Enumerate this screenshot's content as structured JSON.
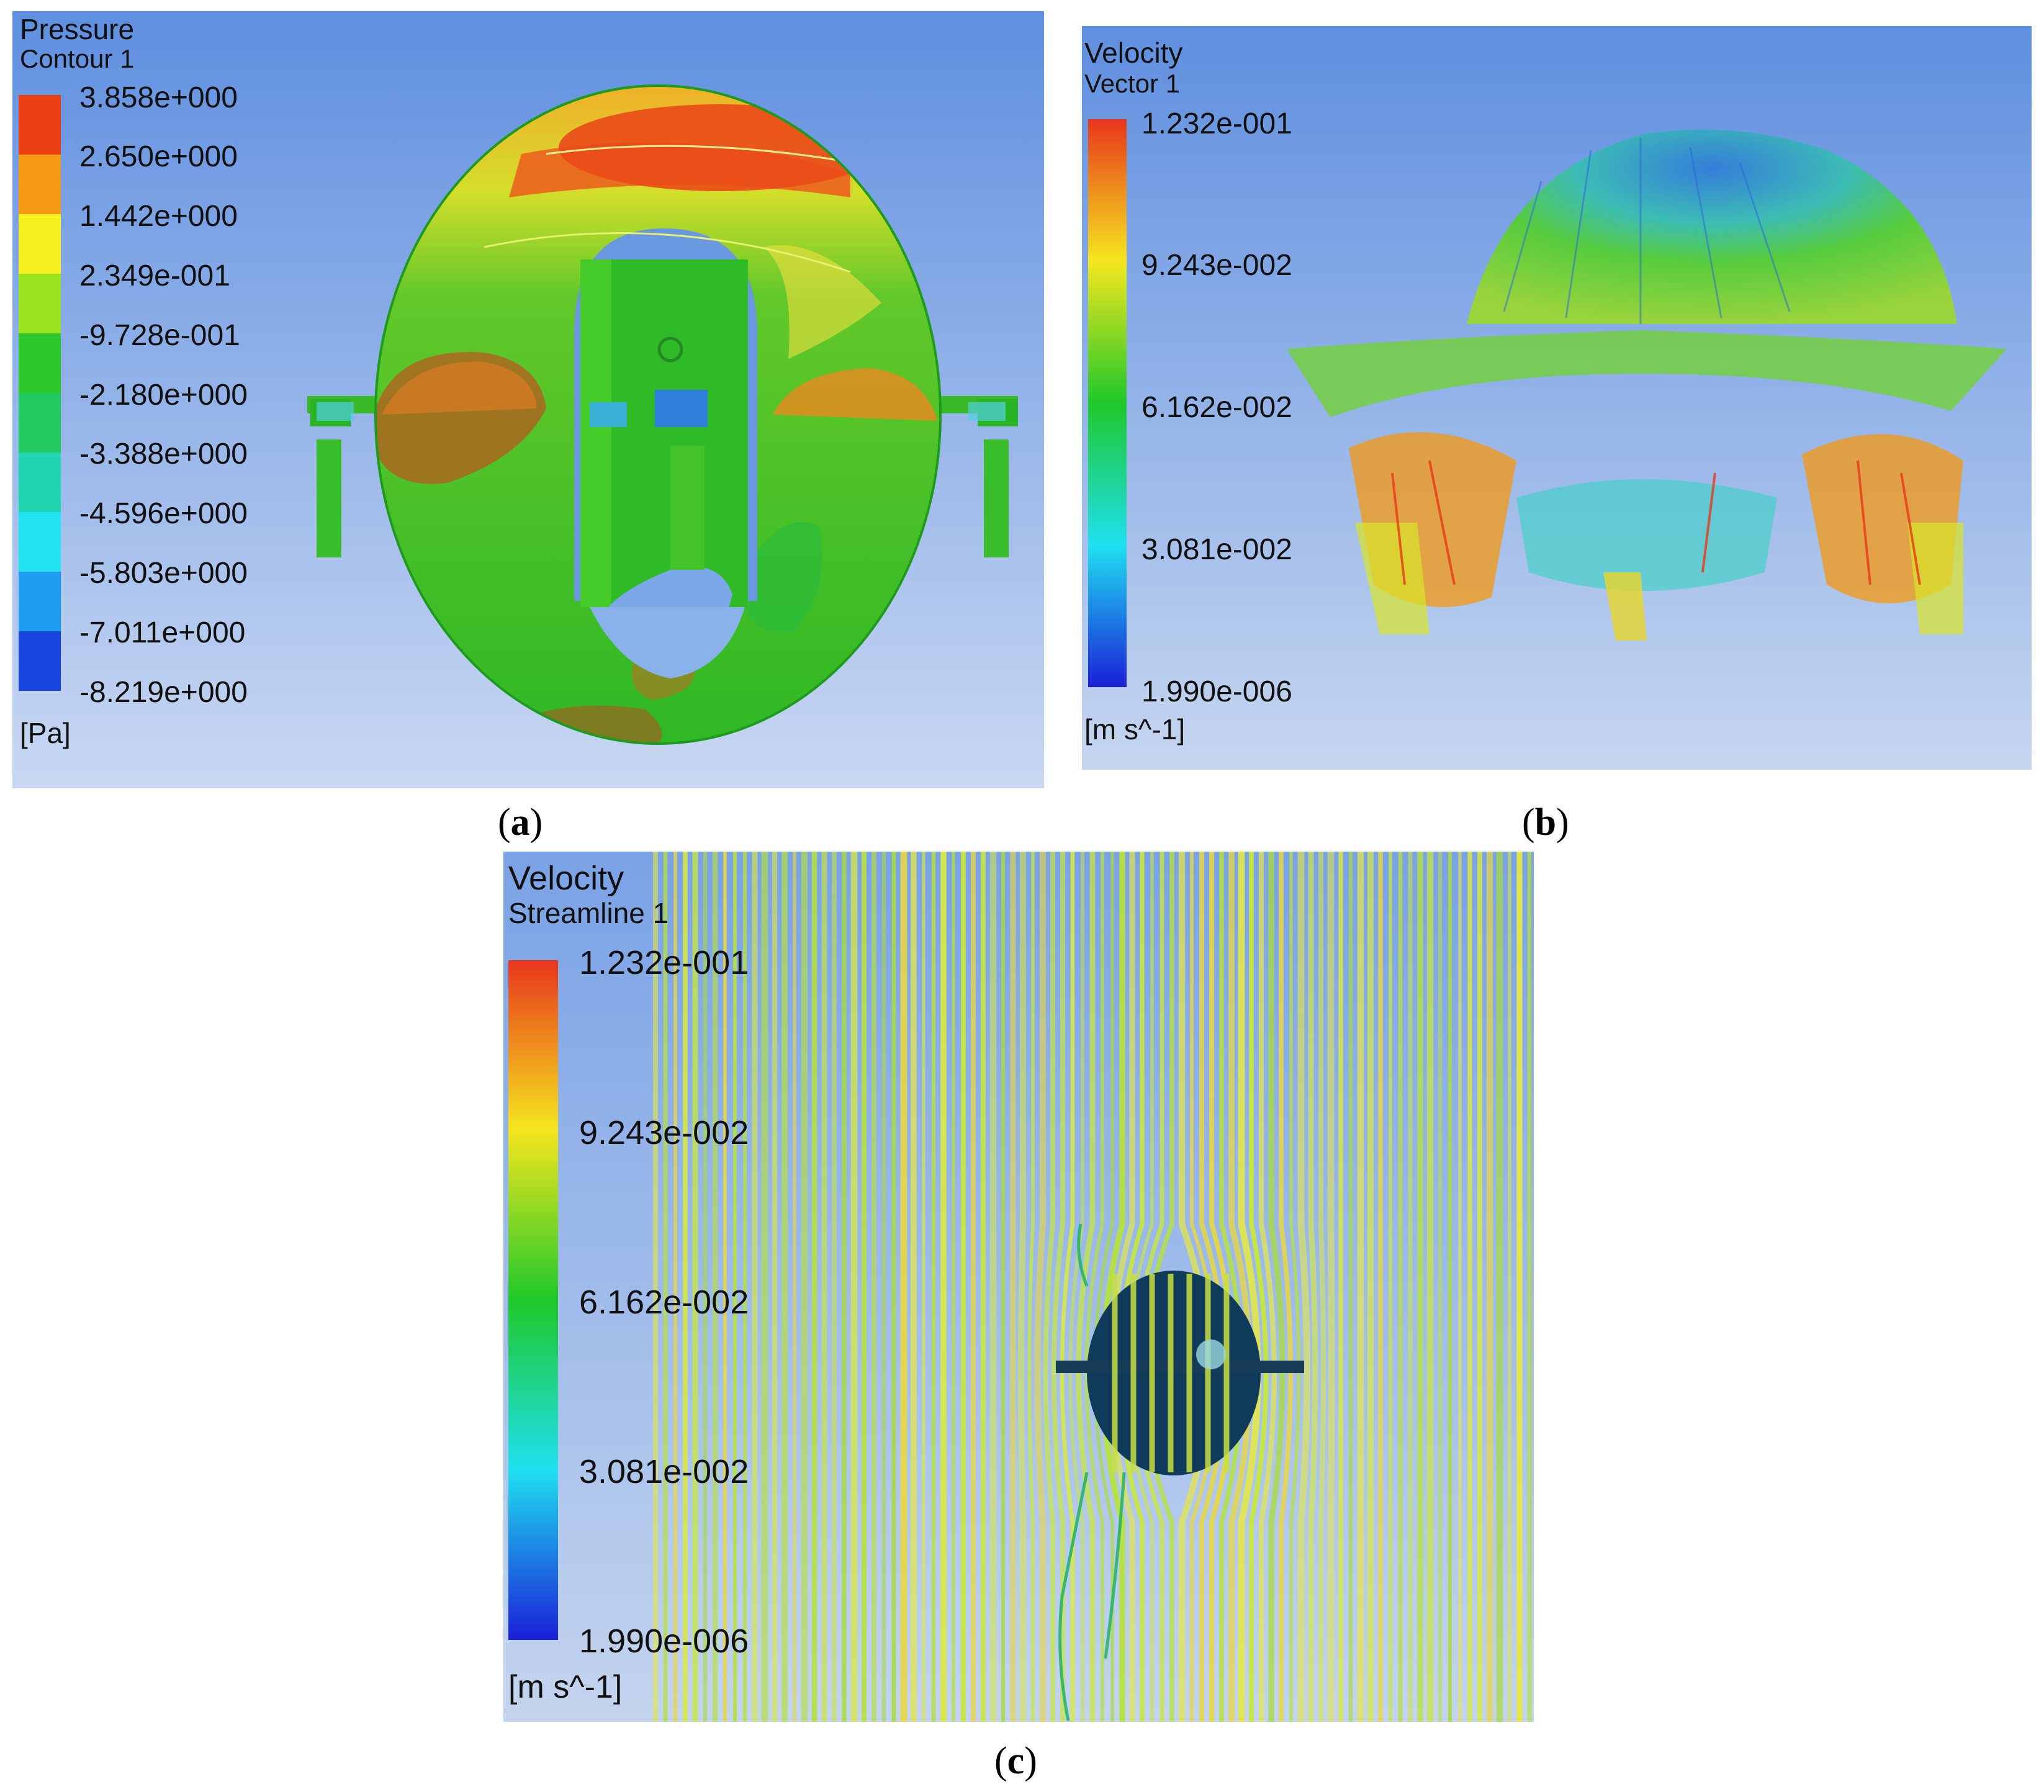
{
  "panels": [
    {
      "id": "a",
      "caption": "a",
      "title": "Pressure",
      "subtitle": "Contour 1",
      "units": "[Pa]",
      "legend_ticks": [
        "3.858e+000",
        "2.650e+000",
        "1.442e+000",
        "2.349e-001",
        "-9.728e-001",
        "-2.180e+000",
        "-3.388e+000",
        "-4.596e+000",
        "-5.803e+000",
        "-7.011e+000",
        "-8.219e+000"
      ],
      "legend_type": "banded"
    },
    {
      "id": "b",
      "caption": "b",
      "title": "Velocity",
      "subtitle": "Vector 1",
      "units": "[m s^-1]",
      "legend_ticks": [
        "1.232e-001",
        "9.243e-002",
        "6.162e-002",
        "3.081e-002",
        "1.990e-006"
      ],
      "legend_type": "continuous"
    },
    {
      "id": "c",
      "caption": "c",
      "title": "Velocity",
      "subtitle": "Streamline 1",
      "units": "[m s^-1]",
      "legend_ticks": [
        "1.232e-001",
        "9.243e-002",
        "6.162e-002",
        "3.081e-002",
        "1.990e-006"
      ],
      "legend_type": "continuous"
    }
  ],
  "colors": {
    "bg_top": "#5f8fe0",
    "bg_bottom": "#c6d6f0",
    "legend_top": "#e8361c",
    "legend_mid": "#1fc82a",
    "legend_bottom": "#1a1fd8"
  }
}
